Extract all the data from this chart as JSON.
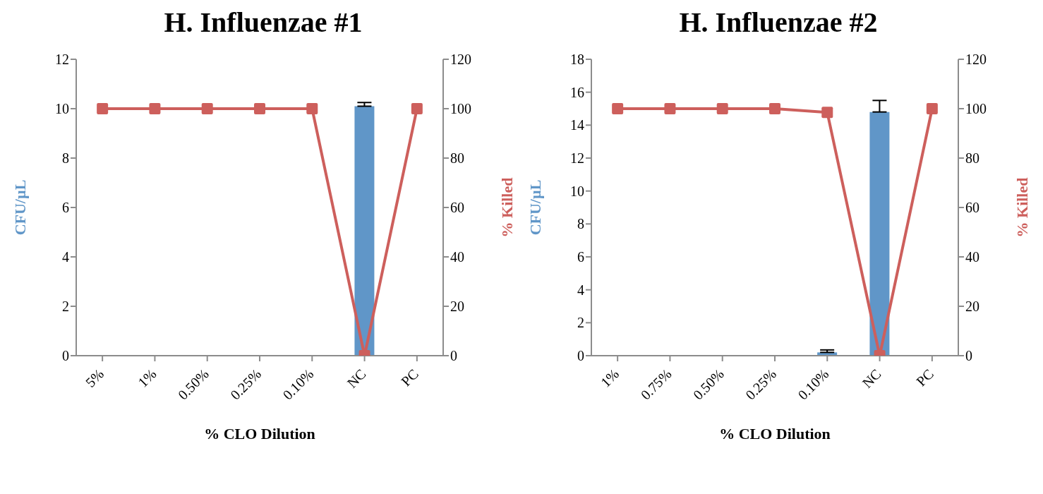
{
  "chart_data": [
    {
      "type": "bar",
      "title": "H. Influenzae #1",
      "xlabel": "% CLO Dilution",
      "ylabel": "CFU/µL",
      "y2label": "% Killed",
      "categories": [
        "5%",
        "1%",
        "0.50%",
        "0.25%",
        "0.10%",
        "NC",
        "PC"
      ],
      "series": [
        {
          "color": "#6096c8",
          "values": [
            0,
            0,
            0,
            0,
            0,
            10.1,
            0
          ],
          "errors": [
            null,
            null,
            null,
            null,
            null,
            [
              10.1,
              10.25
            ],
            null
          ]
        },
        {
          "type": "line",
          "axis": "y2",
          "color": "#cd5f5c",
          "values": [
            100,
            100,
            100,
            100,
            100,
            0,
            100
          ]
        }
      ],
      "ylim": [
        0,
        12
      ],
      "yticks": [
        0,
        2,
        4,
        6,
        8,
        10,
        12
      ],
      "y2lim": [
        0,
        120
      ],
      "y2ticks": [
        0,
        20,
        40,
        60,
        80,
        100,
        120
      ],
      "marker": "square"
    },
    {
      "type": "bar",
      "title": "H. Influenzae #2",
      "xlabel": "% CLO Dilution",
      "ylabel": "CFU/µL",
      "y2label": "% Killed",
      "categories": [
        "1%",
        "0.75%",
        "0.50%",
        "0.25%",
        "0.10%",
        "NC",
        "PC"
      ],
      "series": [
        {
          "color": "#6096c8",
          "values": [
            0,
            0,
            0,
            0,
            0.2,
            14.8,
            0
          ],
          "errors": [
            null,
            null,
            null,
            null,
            [
              0.2,
              0.35
            ],
            [
              14.8,
              15.5
            ],
            null
          ]
        },
        {
          "type": "line",
          "axis": "y2",
          "color": "#cd5f5c",
          "values": [
            100,
            100,
            100,
            100,
            98.5,
            0,
            100
          ]
        }
      ],
      "ylim": [
        0,
        18
      ],
      "yticks": [
        0,
        2,
        4,
        6,
        8,
        10,
        12,
        14,
        16,
        18
      ],
      "y2lim": [
        0,
        120
      ],
      "y2ticks": [
        0,
        20,
        40,
        60,
        80,
        100,
        120
      ],
      "marker": "square"
    }
  ]
}
